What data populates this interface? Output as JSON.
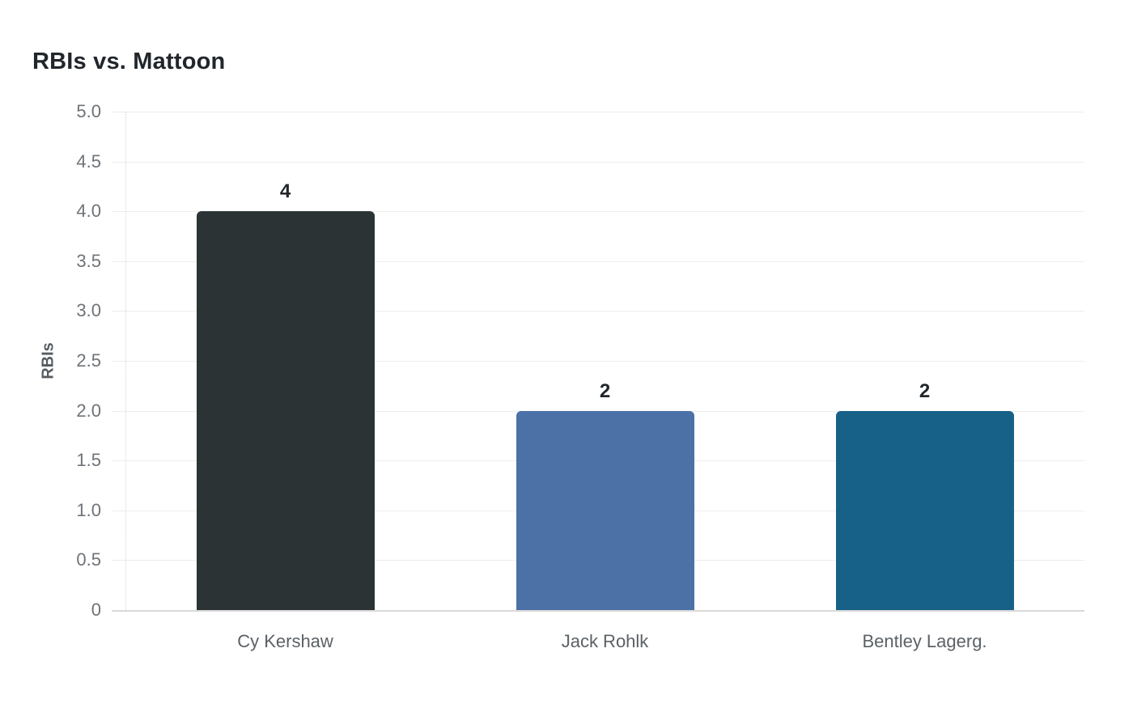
{
  "chart_data": {
    "type": "bar",
    "title": "RBIs vs. Mattoon",
    "xlabel": "",
    "ylabel": "RBIs",
    "categories": [
      "Cy Kershaw",
      "Jack Rohlk",
      "Bentley Lagerg."
    ],
    "values": [
      4,
      2,
      2
    ],
    "value_labels": [
      "4",
      "2",
      "2"
    ],
    "bar_colors": [
      "#2b3335",
      "#4b71a7",
      "#176189"
    ],
    "ylim": [
      0,
      5
    ],
    "ytick_step": 0.5,
    "yticks": [
      "5.0",
      "4.5",
      "4.0",
      "3.5",
      "3.0",
      "2.5",
      "2.0",
      "1.5",
      "1.0",
      "0.5",
      "0"
    ],
    "grid": true,
    "legend": false
  },
  "colors": {
    "background": "#ffffff",
    "title_text": "#21262b",
    "axis_tick_text": "#6e7378",
    "category_text": "#5b6166",
    "value_label_text": "#22262a",
    "gridline": "#ededed",
    "zero_axis_line": "#d9d9d9",
    "y_axis_line": "#d6d6d6"
  }
}
